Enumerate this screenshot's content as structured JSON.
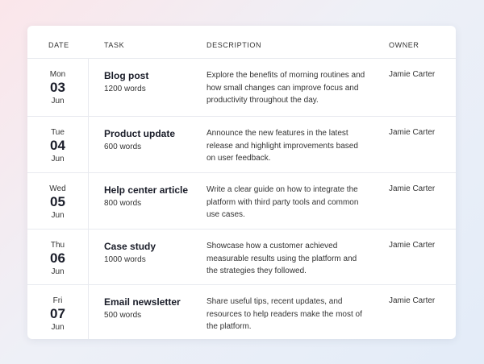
{
  "table": {
    "headers": [
      "DATE",
      "TASK",
      "DESCRIPTION",
      "OWNER"
    ],
    "rows": [
      {
        "weekday": "Mon",
        "day": "03",
        "month": "Jun",
        "task": "Blog post",
        "length": "1200 words",
        "description": "Explore the benefits of morning routines and how small changes can improve focus and productivity throughout the day.",
        "owner": "Jamie Carter"
      },
      {
        "weekday": "Tue",
        "day": "04",
        "month": "Jun",
        "task": "Product update",
        "length": "600 words",
        "description": "Announce the new features in the latest release and highlight improvements based on user feedback.",
        "owner": "Jamie Carter"
      },
      {
        "weekday": "Wed",
        "day": "05",
        "month": "Jun",
        "task": "Help center article",
        "length": "800 words",
        "description": "Write a clear guide on how to integrate the platform with third party tools and common use cases.",
        "owner": "Jamie Carter"
      },
      {
        "weekday": "Thu",
        "day": "06",
        "month": "Jun",
        "task": "Case study",
        "length": "1000 words",
        "description": "Showcase how a customer achieved measurable results using the platform and the strategies they followed.",
        "owner": "Jamie Carter"
      },
      {
        "weekday": "Fri",
        "day": "07",
        "month": "Jun",
        "task": "Email newsletter",
        "length": "500 words",
        "description": "Share useful tips, recent updates, and resources to help readers make the most of the platform.",
        "owner": "Jamie Carter"
      }
    ]
  }
}
